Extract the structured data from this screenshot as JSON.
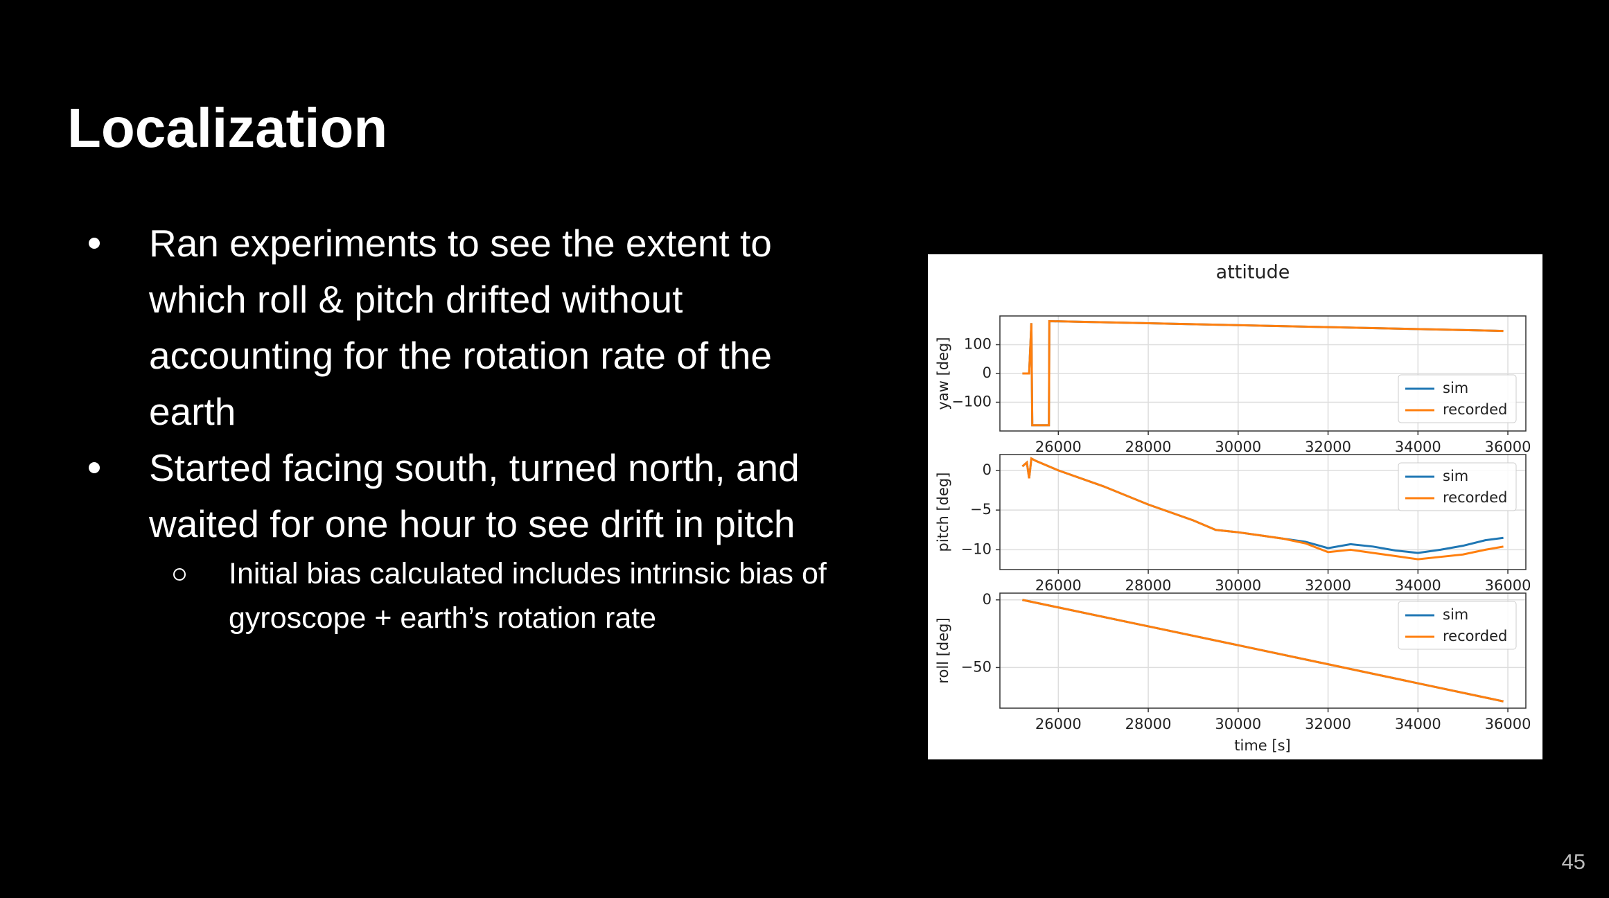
{
  "title": "Localization",
  "bullets": [
    {
      "text": "Ran experiments to see the extent to which roll & pitch drifted without accounting for the rotation rate of the earth"
    },
    {
      "text": "Started facing south, turned north, and waited for one hour to see drift in pitch",
      "subbullets": [
        "Initial bias calculated includes intrinsic bias of gyroscope + earth’s rotation rate"
      ]
    }
  ],
  "page_number": "45",
  "chart_data": [
    {
      "type": "line",
      "title": "attitude",
      "ylabel": "yaw [deg]",
      "grid": true,
      "legend": "lower right",
      "x": [
        25200,
        25350,
        25400,
        25420,
        25790,
        25800,
        35900
      ],
      "xlim": [
        24700,
        36400
      ],
      "xticks": [
        26000,
        28000,
        30000,
        32000,
        34000,
        36000
      ],
      "ylim": [
        -200,
        200
      ],
      "yticks": [
        100,
        0,
        {
          "value": -100,
          "label": "−100"
        }
      ],
      "series": [
        {
          "name": "sim",
          "color": "#1f77b4",
          "values": [
            0,
            0,
            175,
            -180,
            -180,
            182,
            148
          ]
        },
        {
          "name": "recorded",
          "color": "#ff7f0e",
          "values": [
            0,
            0,
            175,
            -180,
            -180,
            182,
            148
          ]
        }
      ]
    },
    {
      "type": "line",
      "ylabel": "pitch [deg]",
      "grid": true,
      "legend": "upper right",
      "x": [
        25200,
        25300,
        25350,
        25400,
        25500,
        26000,
        27000,
        28000,
        29000,
        29500,
        30000,
        30500,
        31000,
        31500,
        32000,
        32500,
        33000,
        33500,
        34000,
        34500,
        35000,
        35500,
        35900
      ],
      "xlim": [
        24700,
        36400
      ],
      "xticks": [
        26000,
        28000,
        30000,
        32000,
        34000,
        36000
      ],
      "ylim": [
        -12.5,
        2
      ],
      "yticks": [
        0,
        {
          "value": -5,
          "label": "−5"
        },
        {
          "value": -10,
          "label": "−10"
        }
      ],
      "series": [
        {
          "name": "sim",
          "color": "#1f77b4",
          "values": [
            0.5,
            1,
            -1,
            1.5,
            1.2,
            0,
            -2,
            -4.3,
            -6.3,
            -7.5,
            -7.8,
            -8.2,
            -8.6,
            -9,
            -9.8,
            -9.3,
            -9.6,
            -10.1,
            -10.4,
            -10,
            -9.5,
            -8.8,
            -8.5
          ]
        },
        {
          "name": "recorded",
          "color": "#ff7f0e",
          "values": [
            0.5,
            1,
            -1,
            1.5,
            1.2,
            0,
            -2,
            -4.3,
            -6.3,
            -7.5,
            -7.8,
            -8.2,
            -8.6,
            -9.2,
            -10.3,
            -10,
            -10.4,
            -10.8,
            -11.2,
            -10.9,
            -10.6,
            -10,
            -9.6
          ]
        }
      ]
    },
    {
      "type": "line",
      "ylabel": "roll [deg]",
      "xlabel": "time [s]",
      "grid": true,
      "legend": "upper right",
      "x": [
        25200,
        30000,
        35900
      ],
      "xlim": [
        24700,
        36400
      ],
      "xticks": [
        26000,
        28000,
        30000,
        32000,
        34000,
        36000
      ],
      "ylim": [
        -80,
        5
      ],
      "yticks": [
        0,
        {
          "value": -50,
          "label": "−50"
        }
      ],
      "series": [
        {
          "name": "sim",
          "color": "#1f77b4",
          "values": [
            0,
            -33.5,
            -75
          ]
        },
        {
          "name": "recorded",
          "color": "#ff7f0e",
          "values": [
            0,
            -33.5,
            -75
          ]
        }
      ]
    }
  ]
}
